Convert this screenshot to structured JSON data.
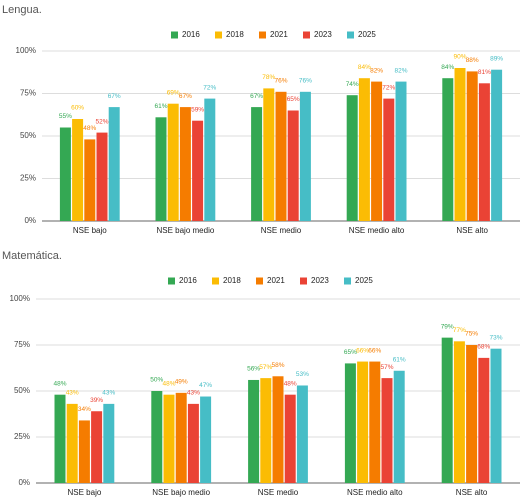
{
  "chart_data": [
    {
      "type": "bar",
      "title": "Lengua.",
      "categories": [
        "NSE bajo",
        "NSE bajo medio",
        "NSE medio",
        "NSE medio alto",
        "NSE alto"
      ],
      "series": [
        {
          "name": "2016",
          "color": "#34a853",
          "values": [
            55,
            61,
            67,
            74,
            84
          ],
          "value_labels": [
            "55%",
            "61%",
            "67%",
            "74%",
            "84%"
          ]
        },
        {
          "name": "2018",
          "color": "#fbbc04",
          "values": [
            60,
            69,
            78,
            84,
            90
          ],
          "value_labels": [
            "60%",
            "69%",
            "78%",
            "84%",
            "90%"
          ]
        },
        {
          "name": "2021",
          "color": "#f57c00",
          "values": [
            48,
            67,
            76,
            82,
            88
          ],
          "value_labels": [
            "48%",
            "67%",
            "76%",
            "82%",
            "88%"
          ]
        },
        {
          "name": "2023",
          "color": "#ea4335",
          "values": [
            52,
            59,
            65,
            72,
            81
          ],
          "value_labels": [
            "52%",
            "59%",
            "65%",
            "72%",
            "81%"
          ]
        },
        {
          "name": "2025",
          "color": "#46bdc6",
          "values": [
            67,
            72,
            76,
            82,
            89
          ],
          "value_labels": [
            "67%",
            "72%",
            "76%",
            "82%",
            "89%"
          ]
        }
      ],
      "ylim": [
        0,
        100
      ],
      "yticks": [
        {
          "value": 0,
          "label": "0%"
        },
        {
          "value": 25,
          "label": "25%"
        },
        {
          "value": 50,
          "label": "50%"
        },
        {
          "value": 75,
          "label": "75%"
        },
        {
          "value": 100,
          "label": "100%"
        }
      ],
      "grid": true
    },
    {
      "type": "bar",
      "title": "Matemática.",
      "categories": [
        "NSE bajo",
        "NSE bajo medio",
        "NSE medio",
        "NSE medio alto",
        "NSE alto"
      ],
      "series": [
        {
          "name": "2016",
          "color": "#34a853",
          "values": [
            48,
            50,
            56,
            65,
            79
          ],
          "value_labels": [
            "48%",
            "50%",
            "56%",
            "65%",
            "79%"
          ]
        },
        {
          "name": "2018",
          "color": "#fbbc04",
          "values": [
            43,
            48,
            57,
            66,
            77
          ],
          "value_labels": [
            "43%",
            "48%",
            "57%",
            "66%",
            "77%"
          ]
        },
        {
          "name": "2021",
          "color": "#f57c00",
          "values": [
            34,
            49,
            58,
            66,
            75
          ],
          "value_labels": [
            "34%",
            "49%",
            "58%",
            "66%",
            "75%"
          ]
        },
        {
          "name": "2023",
          "color": "#ea4335",
          "values": [
            39,
            43,
            48,
            57,
            68
          ],
          "value_labels": [
            "39%",
            "43%",
            "48%",
            "57%",
            "68%"
          ]
        },
        {
          "name": "2025",
          "color": "#46bdc6",
          "values": [
            43,
            47,
            53,
            61,
            73
          ],
          "value_labels": [
            "43%",
            "47%",
            "53%",
            "61%",
            "73%"
          ]
        }
      ],
      "ylim": [
        0,
        100
      ],
      "yticks": [
        {
          "value": 0,
          "label": "0%"
        },
        {
          "value": 25,
          "label": "25%"
        },
        {
          "value": 50,
          "label": "50%"
        },
        {
          "value": 75,
          "label": "75%"
        },
        {
          "value": 100,
          "label": "100%"
        }
      ],
      "grid": true
    }
  ]
}
